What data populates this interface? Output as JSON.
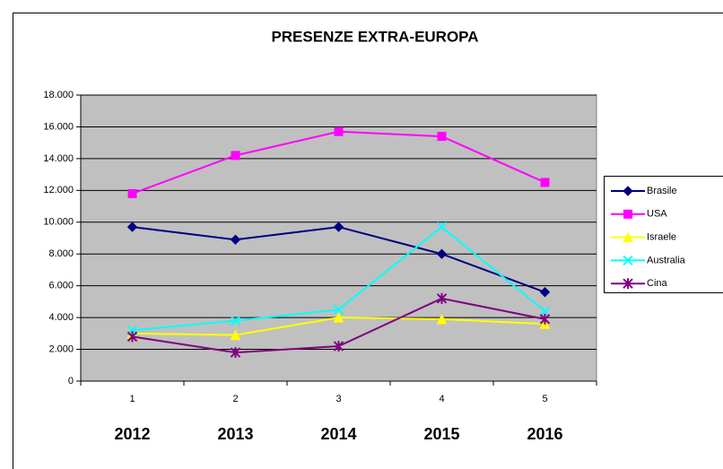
{
  "chart_data": {
    "type": "line",
    "title": "PRESENZE EXTRA-EUROPA",
    "categories": [
      "1",
      "2",
      "3",
      "4",
      "5"
    ],
    "x_group_labels": [
      "2012",
      "2013",
      "2014",
      "2015",
      "2016"
    ],
    "series": [
      {
        "name": "Brasile",
        "color": "#000080",
        "marker": "diamond",
        "values": [
          9700,
          8900,
          9700,
          8000,
          5600
        ]
      },
      {
        "name": "USA",
        "color": "#ff00ff",
        "marker": "square",
        "values": [
          11800,
          14200,
          15700,
          15400,
          12500
        ]
      },
      {
        "name": "Israele",
        "color": "#ffff00",
        "marker": "triangle",
        "values": [
          3000,
          2900,
          4000,
          3900,
          3600
        ]
      },
      {
        "name": "Australia",
        "color": "#00ffff",
        "marker": "x",
        "values": [
          3200,
          3800,
          4500,
          9700,
          4400
        ]
      },
      {
        "name": "Cina",
        "color": "#800080",
        "marker": "star",
        "values": [
          2800,
          1800,
          2200,
          5200,
          3900
        ]
      }
    ],
    "ylim": [
      0,
      18000
    ],
    "yticks": [
      0,
      {
        "value": 2000,
        "label": "2.000"
      },
      {
        "value": 4000,
        "label": "4.000"
      },
      {
        "value": 6000,
        "label": "6.000"
      },
      {
        "value": 8000,
        "label": "8.000"
      },
      {
        "value": 10000,
        "label": "10.000"
      },
      {
        "value": 12000,
        "label": "12.000"
      },
      {
        "value": 14000,
        "label": "14.000"
      },
      {
        "value": 16000,
        "label": "16.000"
      },
      {
        "value": 18000,
        "label": "18.000"
      }
    ],
    "grid": true,
    "plot_background": "#c0c0c0",
    "legend": "right"
  }
}
